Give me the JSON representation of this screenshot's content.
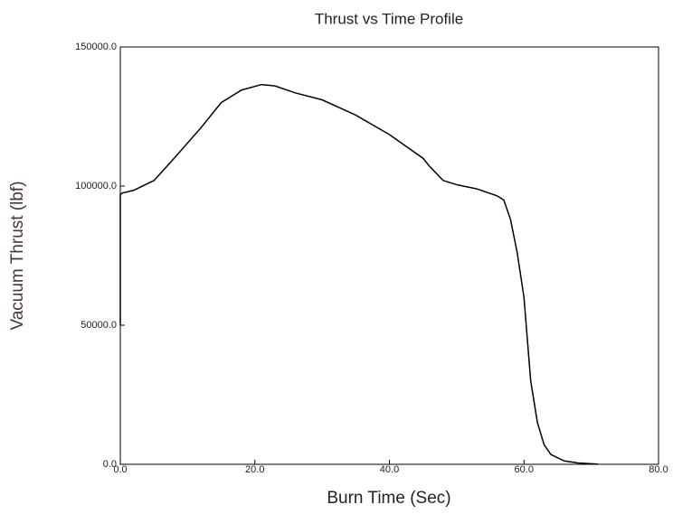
{
  "chart_data": {
    "type": "line",
    "title": "Thrust vs Time Profile",
    "x_label": "Burn Time (Sec)",
    "y_label": "Vacuum Thrust (lbf)",
    "x": [
      0,
      0,
      0.3,
      2,
      5,
      8,
      12,
      15,
      18,
      21,
      23,
      26,
      30,
      35,
      40,
      45,
      46,
      48,
      50,
      53,
      56,
      57,
      58,
      59,
      60,
      60.5,
      61,
      62,
      63,
      64,
      66,
      68,
      70,
      71
    ],
    "series": [
      {
        "name": "Vacuum Thrust",
        "color": "#000000",
        "values": [
          50000,
          97000,
          97500,
          98500,
          102000,
          110000,
          121000,
          130000,
          134500,
          136500,
          136000,
          133500,
          131000,
          125500,
          118500,
          110000,
          107000,
          102000,
          100500,
          99000,
          96500,
          95000,
          88000,
          76000,
          60000,
          45000,
          30000,
          15000,
          7000,
          3500,
          1200,
          500,
          200,
          100
        ]
      }
    ],
    "xlim": [
      0,
      80
    ],
    "xticks": [
      {
        "value": 0,
        "label": "0.0"
      },
      {
        "value": 20,
        "label": "20.0"
      },
      {
        "value": 40,
        "label": "40.0"
      },
      {
        "value": 60,
        "label": "60.0"
      },
      {
        "value": 80,
        "label": "80.0"
      }
    ],
    "ylim": [
      0,
      150000
    ],
    "yticks": [
      {
        "value": 0,
        "label": "0.0"
      },
      {
        "value": 50000,
        "label": "50000.0"
      },
      {
        "value": 100000,
        "label": "100000.0"
      },
      {
        "value": 150000,
        "label": "150000.0"
      }
    ],
    "grid": false
  }
}
